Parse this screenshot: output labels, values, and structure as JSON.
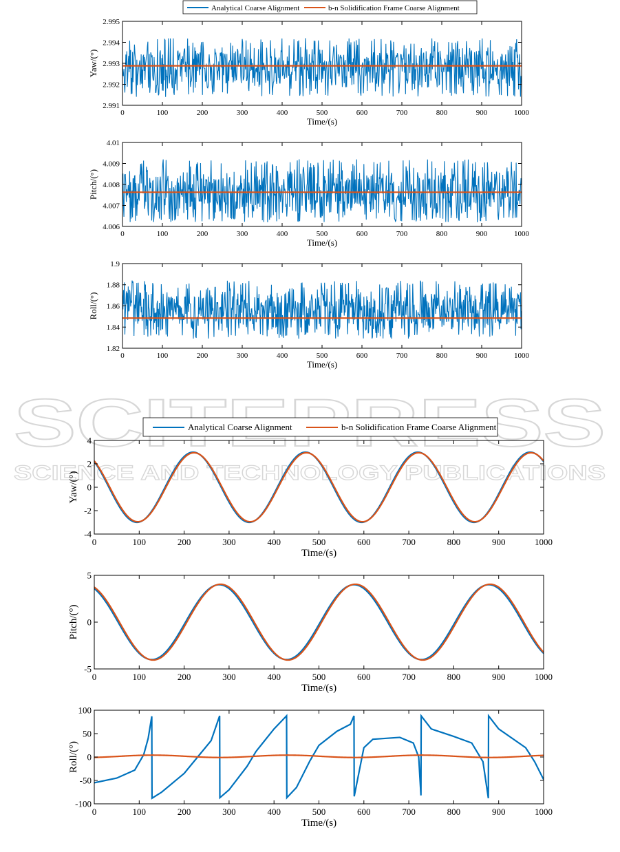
{
  "colors": {
    "analytical": "#0072BD",
    "solidification": "#D95319"
  },
  "watermark": {
    "main": "SCITEPRESS",
    "sub": "SCIENCE AND TECHNOLOGY PUBLICATIONS"
  },
  "chart_data": [
    {
      "type": "line",
      "group": "top",
      "ylabel": "Yaw/(°)",
      "xlabel": "Time/(s)",
      "xlim": [
        0,
        1000
      ],
      "ylim": [
        2.991,
        2.995
      ],
      "xticks": [
        "0",
        "100",
        "200",
        "300",
        "400",
        "500",
        "600",
        "700",
        "800",
        "900",
        "1000"
      ],
      "yticks": [
        "2.991",
        "2.992",
        "2.993",
        "2.994",
        "2.995"
      ],
      "series": [
        {
          "name": "Analytical Coarse Alignment",
          "pattern": "noise",
          "center": 2.9928,
          "low": 2.9914,
          "high": 2.9942
        },
        {
          "name": "b-n Solidification Frame Coarse Alignment",
          "pattern": "constant",
          "value": 2.99288
        }
      ]
    },
    {
      "type": "line",
      "group": "top",
      "ylabel": "Pitch/(°)",
      "xlabel": "Time/(s)",
      "xlim": [
        0,
        1000
      ],
      "ylim": [
        4.006,
        4.01
      ],
      "xticks": [
        "0",
        "100",
        "200",
        "300",
        "400",
        "500",
        "600",
        "700",
        "800",
        "900",
        "1000"
      ],
      "yticks": [
        "4.006",
        "4.007",
        "4.008",
        "4.009",
        "4.01"
      ],
      "series": [
        {
          "name": "Analytical Coarse Alignment",
          "pattern": "noise",
          "center": 4.0076,
          "low": 4.0062,
          "high": 4.0092
        },
        {
          "name": "b-n Solidification Frame Coarse Alignment",
          "pattern": "constant",
          "value": 4.00763
        }
      ]
    },
    {
      "type": "line",
      "group": "top",
      "ylabel": "Roll/(°)",
      "xlabel": "Time/(s)",
      "xlim": [
        0,
        1000
      ],
      "ylim": [
        1.82,
        1.9
      ],
      "xticks": [
        "0",
        "100",
        "200",
        "300",
        "400",
        "500",
        "600",
        "700",
        "800",
        "900",
        "1000"
      ],
      "yticks": [
        "1.82",
        "1.84",
        "1.86",
        "1.88",
        "1.9"
      ],
      "series": [
        {
          "name": "Analytical Coarse Alignment",
          "pattern": "noise",
          "center": 1.856,
          "low": 1.829,
          "high": 1.884
        },
        {
          "name": "b-n Solidification Frame Coarse Alignment",
          "pattern": "constant",
          "value": 1.8485
        }
      ]
    },
    {
      "type": "line",
      "group": "bottom",
      "ylabel": "Yaw/(°)",
      "xlabel": "Time/(s)",
      "xlim": [
        0,
        1000
      ],
      "ylim": [
        -4,
        4
      ],
      "xticks": [
        "0",
        "100",
        "200",
        "300",
        "400",
        "500",
        "600",
        "700",
        "800",
        "900",
        "1000"
      ],
      "yticks": [
        "-4",
        "-2",
        "0",
        "2",
        "4"
      ],
      "series": [
        {
          "name": "Analytical Coarse Alignment",
          "pattern": "sine",
          "amplitude": 3.0,
          "period": 250,
          "peak_at": 220
        },
        {
          "name": "b-n Solidification Frame Coarse Alignment",
          "pattern": "sine",
          "amplitude": 2.95,
          "period": 250,
          "peak_at": 222,
          "extrema": [
            {
              "x": 95,
              "y": -2.7
            },
            {
              "x": 470,
              "y": 3.25
            },
            {
              "x": 970,
              "y": 2.85
            }
          ]
        }
      ]
    },
    {
      "type": "line",
      "group": "bottom",
      "ylabel": "Pitch/(°)",
      "xlabel": "Time/(s)",
      "xlim": [
        0,
        1000
      ],
      "ylim": [
        -5,
        5
      ],
      "xticks": [
        "0",
        "100",
        "200",
        "300",
        "400",
        "500",
        "600",
        "700",
        "800",
        "900",
        "1000"
      ],
      "yticks": [
        "-5",
        "0",
        "5"
      ],
      "series": [
        {
          "name": "Analytical Coarse Alignment",
          "pattern": "sine",
          "amplitude": 4.0,
          "period": 300,
          "peak_at": 278
        },
        {
          "name": "b-n Solidification Frame Coarse Alignment",
          "pattern": "sine",
          "amplitude": 4.05,
          "period": 300,
          "peak_at": 281
        }
      ]
    },
    {
      "type": "line",
      "group": "bottom",
      "ylabel": "Roll/(°)",
      "xlabel": "Time/(s)",
      "xlim": [
        0,
        1000
      ],
      "ylim": [
        -100,
        100
      ],
      "xticks": [
        "0",
        "100",
        "200",
        "300",
        "400",
        "500",
        "600",
        "700",
        "800",
        "900",
        "1000"
      ],
      "yticks": [
        "-100",
        "-50",
        "0",
        "50",
        "100"
      ],
      "series": [
        {
          "name": "Analytical Coarse Alignment",
          "pattern": "arctan",
          "points": [
            [
              0,
              -55
            ],
            [
              50,
              -45
            ],
            [
              90,
              -28
            ],
            [
              110,
              5
            ],
            [
              120,
              40
            ],
            [
              128,
              87
            ],
            [
              128.5,
              -88
            ],
            [
              150,
              -75
            ],
            [
              200,
              -35
            ],
            [
              230,
              0
            ],
            [
              260,
              35
            ],
            [
              279,
              88
            ],
            [
              279.5,
              -87
            ],
            [
              300,
              -70
            ],
            [
              340,
              -20
            ],
            [
              360,
              12
            ],
            [
              400,
              60
            ],
            [
              428,
              88
            ],
            [
              428.5,
              -87
            ],
            [
              450,
              -65
            ],
            [
              480,
              -8
            ],
            [
              500,
              25
            ],
            [
              540,
              55
            ],
            [
              570,
              70
            ],
            [
              578,
              88
            ],
            [
              578.5,
              -84
            ],
            [
              600,
              20
            ],
            [
              620,
              38
            ],
            [
              680,
              42
            ],
            [
              710,
              30
            ],
            [
              722,
              0
            ],
            [
              727,
              -82
            ],
            [
              727.5,
              88
            ],
            [
              750,
              60
            ],
            [
              800,
              44
            ],
            [
              840,
              30
            ],
            [
              865,
              -10
            ],
            [
              877,
              -88
            ],
            [
              877.5,
              88
            ],
            [
              900,
              60
            ],
            [
              960,
              20
            ],
            [
              980,
              -10
            ],
            [
              1000,
              -48
            ]
          ]
        },
        {
          "name": "b-n Solidification Frame Coarse Alignment",
          "pattern": "sine",
          "amplitude": 2.5,
          "period": 300,
          "peak_at": 130,
          "offset": 1.5
        }
      ]
    }
  ],
  "legends": [
    {
      "analytical": "Analytical Coarse Alignment",
      "solidification": "b-n Solidification Frame Coarse Alignment"
    },
    {
      "analytical": "Analytical Coarse Alignment",
      "solidification": "b-n Solidification Frame Coarse Alignment"
    }
  ]
}
